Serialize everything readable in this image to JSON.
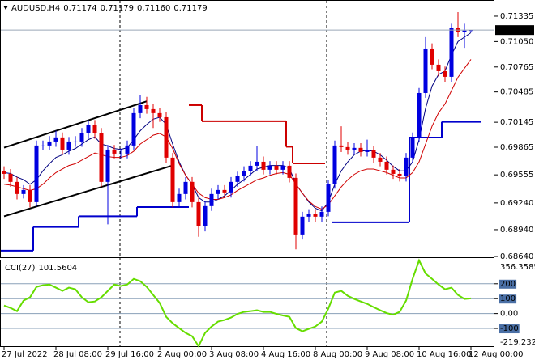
{
  "chart_data": [
    {
      "type": "candlestick",
      "title": "AUDUSD,H4",
      "quote": [
        "0.71174",
        "0.71179",
        "0.71160",
        "0.71179"
      ],
      "categories": [
        "27 Jul 2022",
        null,
        null,
        null,
        null,
        null,
        null,
        null,
        "28 Jul 08:00",
        null,
        null,
        null,
        null,
        null,
        null,
        null,
        "29 Jul 16:00",
        null,
        null,
        null,
        null,
        null,
        null,
        null,
        "2 Aug 00:00",
        null,
        null,
        null,
        null,
        null,
        null,
        null,
        "3 Aug 08:00",
        null,
        null,
        null,
        null,
        null,
        null,
        null,
        "4 Aug 16:00",
        null,
        null,
        null,
        null,
        null,
        null,
        null,
        "8 Aug 00:00",
        null,
        null,
        null,
        null,
        null,
        null,
        null,
        "9 Aug 08:00",
        null,
        null,
        null,
        null,
        null,
        null,
        null,
        "10 Aug 16:00",
        null,
        null,
        null,
        null,
        null,
        null,
        null,
        "12 Aug 00:00"
      ],
      "open": [
        0.69594,
        0.69566,
        0.69476,
        0.6934,
        0.69385,
        0.69249,
        0.69884,
        0.69884,
        0.69929,
        0.69975,
        0.69838,
        0.69929,
        0.69929,
        0.7002,
        0.70111,
        0.7002,
        0.69476,
        0.69838,
        0.69793,
        0.69793,
        0.69884,
        0.70247,
        0.70337,
        0.70292,
        0.70247,
        0.70201,
        0.69748,
        0.69249,
        0.6934,
        0.69476,
        0.69249,
        0.68977,
        0.69204,
        0.6934,
        0.69385,
        0.69358,
        0.69476,
        0.69539,
        0.69594,
        0.69657,
        0.69702,
        0.69612,
        0.69657,
        0.69612,
        0.69657,
        0.69521,
        0.68886,
        0.69086,
        0.69113,
        0.69086,
        0.6914,
        0.69448,
        0.69884,
        0.69866,
        0.69838,
        0.69857,
        0.69811,
        0.69829,
        0.69748,
        0.69702,
        0.69612,
        0.69566,
        0.69539,
        0.69748,
        0.69975,
        0.70473,
        0.70972,
        0.70791,
        0.70718,
        0.70655,
        0.71199,
        0.71154,
        0.71174
      ],
      "high": [
        0.6965,
        0.6962,
        0.6953,
        0.6944,
        0.6944,
        0.6994,
        0.6994,
        0.6999,
        0.7005,
        0.7003,
        0.6998,
        0.6999,
        0.7008,
        0.7017,
        0.7017,
        0.7008,
        0.6989,
        0.6989,
        0.6985,
        0.6994,
        0.703,
        0.7045,
        0.7043,
        0.7035,
        0.703,
        0.7026,
        0.698,
        0.694,
        0.6953,
        0.6953,
        0.693,
        0.6926,
        0.694,
        0.6944,
        0.6944,
        0.6953,
        0.6959,
        0.6965,
        0.6971,
        0.6988,
        0.6976,
        0.6971,
        0.6971,
        0.6971,
        0.6971,
        0.6957,
        0.6914,
        0.6917,
        0.6917,
        0.692,
        0.695,
        0.6994,
        0.701,
        0.6992,
        0.6991,
        0.6991,
        0.6995,
        0.6988,
        0.698,
        0.6976,
        0.6966,
        0.6962,
        0.698,
        0.7003,
        0.7053,
        0.711,
        0.7103,
        0.7085,
        0.7077,
        0.7125,
        0.7138,
        0.7125,
        0.71179
      ],
      "low": [
        0.6951,
        0.6942,
        0.6928,
        0.6929,
        0.6919,
        0.692,
        0.6983,
        0.6983,
        0.6987,
        0.6978,
        0.6978,
        0.6987,
        0.6987,
        0.6996,
        0.6996,
        0.6942,
        0.69,
        0.6974,
        0.6974,
        0.6974,
        0.6983,
        0.7019,
        0.7024,
        0.7008,
        0.7015,
        0.6969,
        0.6919,
        0.6919,
        0.6928,
        0.6919,
        0.6886,
        0.6892,
        0.6915,
        0.6928,
        0.693,
        0.693,
        0.6942,
        0.6948,
        0.6954,
        0.696,
        0.6956,
        0.6956,
        0.6956,
        0.6956,
        0.6947,
        0.6872,
        0.6883,
        0.6903,
        0.6903,
        0.6903,
        0.6909,
        0.694,
        0.6981,
        0.6978,
        0.6978,
        0.6976,
        0.6976,
        0.6969,
        0.6965,
        0.6956,
        0.6951,
        0.6948,
        0.6948,
        0.6969,
        0.6992,
        0.7042,
        0.7074,
        0.7066,
        0.706,
        0.706,
        0.711,
        0.7098,
        0.7116
      ],
      "close": [
        0.69566,
        0.69476,
        0.6934,
        0.69385,
        0.69249,
        0.69884,
        0.69884,
        0.69929,
        0.69975,
        0.69838,
        0.69929,
        0.69929,
        0.7002,
        0.70111,
        0.7002,
        0.69476,
        0.69838,
        0.69793,
        0.69793,
        0.69884,
        0.70247,
        0.70337,
        0.70292,
        0.70247,
        0.70201,
        0.69748,
        0.69249,
        0.6934,
        0.69476,
        0.69249,
        0.68977,
        0.69204,
        0.6934,
        0.69385,
        0.69358,
        0.69476,
        0.69539,
        0.69594,
        0.69657,
        0.69702,
        0.69612,
        0.69657,
        0.69612,
        0.69657,
        0.69521,
        0.68886,
        0.69086,
        0.69113,
        0.69086,
        0.6914,
        0.69448,
        0.69884,
        0.69866,
        0.69838,
        0.69857,
        0.69811,
        0.69829,
        0.69748,
        0.69702,
        0.69612,
        0.69566,
        0.69539,
        0.69748,
        0.69975,
        0.70473,
        0.70972,
        0.70791,
        0.70718,
        0.70655,
        0.71199,
        0.71154,
        0.71174,
        0.71179
      ],
      "up_color": "#0000e0",
      "down_color": "#e00000",
      "lines": [
        {
          "color": "#000080",
          "values": [
            0.6958,
            0.6957,
            0.6953,
            0.695,
            0.6945,
            0.695,
            0.696,
            0.6968,
            0.6975,
            0.6978,
            0.6982,
            0.6985,
            0.699,
            0.6995,
            0.6998,
            0.699,
            0.6988,
            0.6985,
            0.6984,
            0.6986,
            0.6995,
            0.7005,
            0.7012,
            0.7018,
            0.702,
            0.7012,
            0.699,
            0.697,
            0.6955,
            0.6945,
            0.693,
            0.6925,
            0.6925,
            0.6928,
            0.6932,
            0.6938,
            0.6945,
            0.695,
            0.6956,
            0.6962,
            0.6964,
            0.6966,
            0.6966,
            0.6966,
            0.6963,
            0.6945,
            0.6935,
            0.6925,
            0.6918,
            0.6915,
            0.6925,
            0.6945,
            0.696,
            0.697,
            0.6978,
            0.6982,
            0.6983,
            0.6982,
            0.6978,
            0.6972,
            0.6965,
            0.696,
            0.696,
            0.697,
            0.6995,
            0.703,
            0.7055,
            0.7068,
            0.7072,
            0.709,
            0.7105,
            0.711,
            0.7115
          ]
        },
        {
          "color": "#d00000",
          "values": [
            0.6945,
            0.6944,
            0.6942,
            0.694,
            0.6938,
            0.694,
            0.6945,
            0.6952,
            0.6958,
            0.6962,
            0.6966,
            0.6968,
            0.6972,
            0.6976,
            0.698,
            0.6978,
            0.6976,
            0.6975,
            0.6975,
            0.6977,
            0.6982,
            0.699,
            0.6995,
            0.7,
            0.7002,
            0.6998,
            0.6985,
            0.6968,
            0.6955,
            0.6945,
            0.6935,
            0.693,
            0.6928,
            0.6928,
            0.693,
            0.6933,
            0.6938,
            0.6942,
            0.6946,
            0.695,
            0.6952,
            0.6955,
            0.6957,
            0.6958,
            0.6956,
            0.6945,
            0.6935,
            0.6926,
            0.692,
            0.6917,
            0.6922,
            0.6932,
            0.6942,
            0.695,
            0.6956,
            0.696,
            0.6962,
            0.6962,
            0.696,
            0.6958,
            0.6955,
            0.6952,
            0.6952,
            0.6958,
            0.697,
            0.699,
            0.701,
            0.7025,
            0.7035,
            0.705,
            0.7065,
            0.7075,
            0.7085
          ]
        }
      ],
      "trendlines": [
        {
          "color": "#000000",
          "x": [
            0,
            22
          ],
          "values": [
            0.6986,
            0.7038
          ]
        },
        {
          "color": "#000000",
          "x": [
            0,
            26
          ],
          "values": [
            0.6909,
            0.6966
          ]
        }
      ],
      "steps": [
        {
          "color": "#0000cc",
          "x": [
            0,
            4
          ],
          "value": 0.68705
        },
        {
          "color": "#0000cc",
          "x": [
            5,
            11
          ],
          "value": 0.6897
        },
        {
          "color": "#0000cc",
          "x": [
            12,
            20
          ],
          "value": 0.6909
        },
        {
          "color": "#0000cc",
          "x": [
            21,
            28
          ],
          "value": 0.69194
        },
        {
          "color": "#cc0000",
          "x": [
            29,
            30
          ],
          "value": 0.70337
        },
        {
          "color": "#cc0000",
          "x": [
            31,
            43
          ],
          "value": 0.70156
        },
        {
          "color": "#cc0000",
          "x": [
            44,
            44
          ],
          "value": 0.6987
        },
        {
          "color": "#cc0000",
          "x": [
            45,
            49
          ],
          "value": 0.69684
        },
        {
          "color": "#0000cc",
          "x": [
            51,
            62
          ],
          "value": 0.69022
        },
        {
          "color": "#0000cc",
          "x": [
            63,
            67
          ],
          "value": 0.69974
        },
        {
          "color": "#0000cc",
          "x": [
            68,
            73
          ],
          "value": 0.7015
        }
      ],
      "ylim": [
        0.68631,
        0.71498
      ],
      "yticks": [
        0.71335,
        {
          "value": 0.7105,
          "label": "0.71050"
        },
        0.70765,
        0.70485,
        0.70145,
        0.69865,
        0.69555,
        {
          "value": 0.6924,
          "label": "0.69240"
        },
        {
          "value": 0.6894,
          "label": "0.68940"
        },
        {
          "value": 0.6864,
          "label": "0.68640"
        }
      ]
    },
    {
      "type": "line",
      "title": "CCI(27)",
      "color": "#66dd00",
      "values": [
        54,
        38,
        16,
        87,
        109,
        179,
        190,
        195,
        174,
        152,
        174,
        163,
        109,
        76,
        81,
        109,
        152,
        195,
        185,
        195,
        233,
        217,
        179,
        125,
        71,
        -22,
        -65,
        -98,
        -130,
        -152,
        -219.2329,
        -130,
        -87,
        -54,
        -43,
        -27,
        -2,
        11,
        16,
        22,
        11,
        11,
        -2,
        -13,
        -22,
        -98,
        -119,
        -103,
        -87,
        -54,
        33,
        141,
        152,
        119,
        98,
        81,
        65,
        43,
        22,
        3,
        -8,
        11,
        87,
        233,
        356.3585,
        269,
        233,
        195,
        163,
        174,
        125,
        98,
        101.5604
      ],
      "ylim": [
        -219.2329,
        356.3585
      ],
      "yticks": [
        200,
        100,
        {
          "value": 0,
          "label": "0.00"
        },
        -100
      ]
    }
  ]
}
